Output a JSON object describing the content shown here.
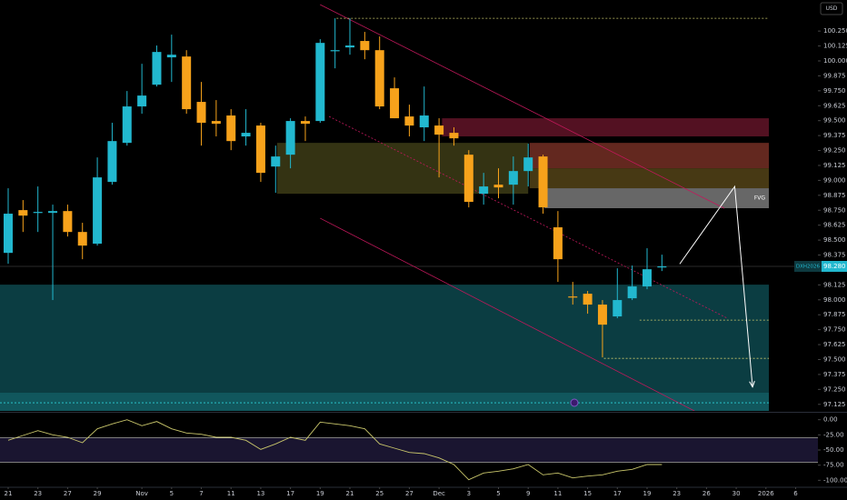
{
  "chart_data": {
    "type": "candlestick",
    "currency": "USD",
    "symbol": "DXH2026",
    "last_price": {
      "value": 98.28,
      "label": "98.280"
    },
    "up_color": "#22b8cf",
    "down_color": "#f7a21b",
    "x": [
      0,
      1,
      2,
      3,
      4,
      5,
      6,
      7,
      8,
      9,
      10,
      11,
      12,
      13,
      14,
      15,
      16,
      17,
      18,
      19,
      20,
      21,
      22,
      23,
      24,
      25,
      26,
      27,
      28,
      29,
      30,
      31,
      32,
      33,
      34,
      35,
      36,
      37,
      38,
      39,
      40,
      41,
      42,
      43,
      44
    ],
    "open": [
      98.393,
      98.751,
      98.728,
      98.728,
      98.743,
      98.568,
      98.47,
      98.987,
      99.314,
      99.619,
      99.801,
      100.03,
      100.037,
      99.657,
      99.497,
      99.543,
      99.368,
      99.459,
      99.116,
      99.215,
      99.497,
      99.497,
      100.09,
      100.113,
      100.167,
      100.09,
      99.771,
      99.535,
      99.444,
      99.459,
      99.398,
      99.215,
      98.888,
      98.964,
      98.964,
      99.078,
      99.2,
      98.607,
      98.028,
      98.051,
      97.96,
      97.861,
      98.013,
      98.112,
      98.279
    ],
    "high": [
      98.934,
      98.835,
      98.949,
      98.797,
      98.797,
      98.645,
      99.192,
      99.482,
      99.748,
      99.976,
      100.129,
      100.22,
      100.09,
      99.824,
      99.672,
      99.596,
      99.596,
      99.482,
      99.291,
      99.52,
      99.535,
      100.182,
      100.357,
      100.357,
      100.243,
      100.205,
      99.862,
      99.634,
      99.786,
      99.52,
      99.444,
      99.253,
      99.063,
      99.101,
      99.2,
      99.307,
      99.215,
      98.743,
      98.15,
      98.074,
      97.998,
      98.264,
      98.287,
      98.432,
      98.378
    ],
    "low": [
      98.302,
      98.568,
      98.568,
      97.998,
      98.53,
      98.34,
      98.454,
      98.964,
      99.291,
      99.558,
      99.786,
      99.824,
      99.558,
      99.291,
      99.368,
      99.253,
      99.291,
      98.987,
      98.896,
      99.101,
      99.329,
      99.482,
      99.938,
      100.052,
      100.014,
      99.596,
      99.52,
      99.368,
      99.329,
      99.025,
      99.291,
      98.774,
      98.797,
      98.85,
      98.797,
      98.949,
      98.721,
      98.15,
      97.96,
      97.884,
      97.518,
      97.846,
      97.998,
      98.089,
      98.241
    ],
    "close": [
      98.721,
      98.705,
      98.736,
      98.743,
      98.568,
      98.454,
      99.025,
      99.329,
      99.619,
      99.71,
      100.075,
      100.052,
      99.596,
      99.482,
      99.474,
      99.329,
      99.398,
      99.063,
      99.2,
      99.497,
      99.474,
      100.151,
      100.09,
      100.129,
      100.09,
      99.619,
      99.52,
      99.459,
      99.543,
      99.383,
      99.352,
      98.82,
      98.949,
      98.941,
      99.078,
      99.192,
      98.774,
      98.34,
      98.02,
      97.96,
      97.792,
      97.998,
      98.112,
      98.256,
      98.28
    ],
    "xlim": [
      -0.55,
      54.5
    ],
    "xticks": [
      {
        "value": 0,
        "label": "21"
      },
      {
        "value": 2,
        "label": "23"
      },
      {
        "value": 4,
        "label": "27"
      },
      {
        "value": 6,
        "label": "29"
      },
      {
        "value": 9,
        "label": "Nov"
      },
      {
        "value": 11,
        "label": "5"
      },
      {
        "value": 13,
        "label": "7"
      },
      {
        "value": 15,
        "label": "11"
      },
      {
        "value": 17,
        "label": "13"
      },
      {
        "value": 19,
        "label": "17"
      },
      {
        "value": 21,
        "label": "19"
      },
      {
        "value": 23,
        "label": "21"
      },
      {
        "value": 25,
        "label": "25"
      },
      {
        "value": 27,
        "label": "27"
      },
      {
        "value": 29,
        "label": "Dec"
      },
      {
        "value": 31,
        "label": "3"
      },
      {
        "value": 33,
        "label": "5"
      },
      {
        "value": 35,
        "label": "9"
      },
      {
        "value": 37,
        "label": "11"
      },
      {
        "value": 39,
        "label": "15"
      },
      {
        "value": 41,
        "label": "17"
      },
      {
        "value": 43,
        "label": "19"
      },
      {
        "value": 45,
        "label": "23"
      },
      {
        "value": 47,
        "label": "26"
      },
      {
        "value": 49,
        "label": "30"
      },
      {
        "value": 51,
        "label": "2026"
      },
      {
        "value": 53,
        "label": "6"
      }
    ],
    "ylim": [
      97.07,
      100.51
    ],
    "yticks": [
      {
        "value": 100.25,
        "label": "100.250"
      },
      100.125,
      {
        "value": 100,
        "label": "100.000"
      },
      99.875,
      {
        "value": 99.75,
        "label": "99.750"
      },
      99.625,
      {
        "value": 99.5,
        "label": "99.500"
      },
      99.375,
      {
        "value": 99.25,
        "label": "99.250"
      },
      99.125,
      {
        "value": 99,
        "label": "99.000"
      },
      98.875,
      {
        "value": 98.75,
        "label": "98.750"
      },
      98.625,
      {
        "value": 98.5,
        "label": "98.500"
      },
      98.375,
      98.125,
      {
        "value": 98,
        "label": "98.000"
      },
      97.875,
      {
        "value": 97.75,
        "label": "97.750"
      },
      97.625,
      {
        "value": 97.5,
        "label": "97.500"
      },
      97.375,
      {
        "value": 97.25,
        "label": "97.250"
      },
      97.125
    ],
    "zones": [
      {
        "x": [
          -0.55,
          51.2
        ],
        "y": [
          97.07,
          98.127
        ],
        "color": "#0c4449"
      },
      {
        "x": [
          -0.55,
          51.2
        ],
        "y": [
          97.07,
          97.222
        ],
        "color": "#125a60"
      },
      {
        "x": [
          29.2,
          51.2
        ],
        "y": [
          99.368,
          99.52
        ],
        "color": "#5c1326"
      },
      {
        "x": [
          18.1,
          35.0
        ],
        "y": [
          98.888,
          99.314
        ],
        "color": "#3a3915"
      },
      {
        "x": [
          35.1,
          51.2
        ],
        "y": [
          99.101,
          99.314
        ],
        "color": "#6e2c22"
      },
      {
        "x": [
          35.1,
          51.2
        ],
        "y": [
          98.934,
          99.101
        ],
        "color": "#4f3f16"
      },
      {
        "x": [
          36.1,
          51.2
        ],
        "y": [
          98.767,
          98.934
        ],
        "color": "#8a8a8a",
        "label": "FVG"
      }
    ],
    "lines": [
      {
        "x": [
          21.0,
          48.2
        ],
        "y": [
          100.471,
          98.766
        ],
        "color": "#c2185b",
        "dash": false
      },
      {
        "x": [
          21.0,
          46.2
        ],
        "y": [
          98.683,
          97.069
        ],
        "color": "#c2185b",
        "dash": false
      },
      {
        "x": [
          21.6,
          48.4
        ],
        "y": [
          99.535,
          97.846
        ],
        "color": "#c2185b",
        "dash": true
      },
      {
        "x": [
          22.1,
          51.2
        ],
        "y": [
          100.357,
          100.357
        ],
        "color": "#c9c66b",
        "dash": true
      },
      {
        "x": [
          -0.55,
          51.2
        ],
        "y": [
          97.138,
          97.138
        ],
        "color": "#2bd1d8",
        "dash": true
      },
      {
        "x": [
          42.5,
          51.2
        ],
        "y": [
          97.83,
          97.83
        ],
        "color": "#c9c66b",
        "dash": true
      },
      {
        "x": [
          40.1,
          51.2
        ],
        "y": [
          97.51,
          97.51
        ],
        "color": "#c9c66b",
        "dash": true
      },
      {
        "x": [
          45.2,
          48.9,
          50.1
        ],
        "y": [
          98.3,
          98.949,
          97.27
        ],
        "color": "#ffffff",
        "dash": false,
        "arrow": true
      }
    ],
    "oscillator": {
      "values": [
        -34,
        -26,
        -18,
        -25,
        -29,
        -38,
        -15,
        -7,
        0,
        -10,
        -3,
        -15,
        -22,
        -24,
        -29,
        -29,
        -34,
        -49,
        -40,
        -29,
        -34,
        -4,
        -7,
        -10,
        -15,
        -40,
        -47,
        -54,
        -56,
        -63,
        -74,
        -99,
        -88,
        -85,
        -81,
        -74,
        -91,
        -88,
        -96,
        -93,
        -91,
        -85,
        -82,
        -74,
        -74
      ],
      "color": "#c9c66b",
      "ylim": [
        -110,
        10
      ],
      "yticks": [
        {
          "value": 0,
          "label": "0.00"
        },
        {
          "value": -25,
          "label": "-25.00"
        },
        {
          "value": -50,
          "label": "-50.00"
        },
        {
          "value": -75,
          "label": "-75.00"
        },
        {
          "value": -100,
          "label": "-100.00"
        }
      ],
      "levels": [
        -30,
        -70
      ]
    }
  }
}
